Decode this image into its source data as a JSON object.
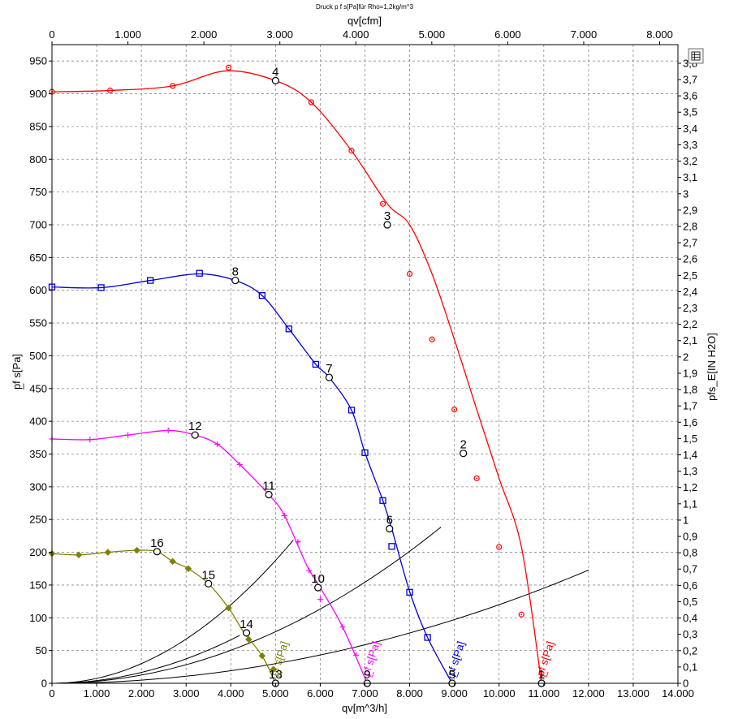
{
  "chart_data": {
    "type": "line",
    "title": "Druck p f s[Pa]für Rho=1,2kg/m^3",
    "xlabel": "qv[m^3/h]",
    "x2label": "qv[cfm]",
    "ylabel": "p̲f s[Pa]",
    "y2label": "pfs_E[IN H2O]",
    "xlim": [
      0,
      14000
    ],
    "ylim": [
      0,
      975
    ],
    "x2lim": [
      0,
      8240
    ],
    "y2lim": [
      0,
      3.914
    ],
    "x_ticks": [
      "0",
      "1.000",
      "2.000",
      "3.000",
      "4.000",
      "5.000",
      "6.000",
      "7.000",
      "8.000",
      "9.000",
      "10.000",
      "11.000",
      "12.000",
      "13.000",
      "14.000"
    ],
    "x2_ticks": [
      "0",
      "1.000",
      "2.000",
      "3.000",
      "4.000",
      "5.000",
      "6.000",
      "7.000",
      "8.000"
    ],
    "y_ticks": [
      "0",
      "50",
      "100",
      "150",
      "200",
      "250",
      "300",
      "350",
      "400",
      "450",
      "500",
      "550",
      "600",
      "650",
      "700",
      "750",
      "800",
      "850",
      "900",
      "950"
    ],
    "y2_ticks": [
      "0",
      "0,1",
      "0,2",
      "0,3",
      "0,4",
      "0,5",
      "0,6",
      "0,7",
      "0,8",
      "0,9",
      "1",
      "1,1",
      "1,2",
      "1,3",
      "1,4",
      "1,5",
      "1,6",
      "1,7",
      "1,8",
      "1,9",
      "2",
      "2,1",
      "2,2",
      "2,3",
      "2,4",
      "2,5",
      "2,6",
      "2,7",
      "2,8",
      "2,9",
      "3",
      "3,1",
      "3,2",
      "3,3",
      "3,4",
      "3,5",
      "3,6",
      "3,7",
      "3,8"
    ],
    "grid": true,
    "series": [
      {
        "name": "p̲f s[Pa]",
        "color": "#ff0000",
        "marker": "circle",
        "x": [
          0,
          1300,
          2700,
          3900,
          5000,
          5800,
          6700,
          7500,
          8000,
          8500,
          9000,
          9500,
          10000,
          10500,
          10950
        ],
        "y": [
          903,
          905,
          912,
          935,
          920,
          887,
          813,
          732,
          700,
          625,
          525,
          418,
          313,
          208,
          0
        ],
        "markers_x": [
          0,
          1300,
          2700,
          3950,
          5800,
          6700,
          7400,
          8000,
          8500,
          9000,
          9500,
          10000,
          10500
        ],
        "markers_y": [
          903,
          905,
          912,
          940,
          887,
          813,
          732,
          625,
          525,
          418,
          313,
          208,
          105
        ]
      },
      {
        "name": "p̲f s[Pa]",
        "color": "#0000dd",
        "marker": "square",
        "x": [
          0,
          1100,
          2200,
          3300,
          4100,
          4700,
          5300,
          5900,
          6200,
          6700,
          7000,
          7400,
          7600,
          8000,
          8400,
          8950
        ],
        "y": [
          605,
          604,
          615,
          625,
          615,
          592,
          541,
          487,
          467,
          417,
          352,
          279,
          236,
          140,
          70,
          0
        ],
        "markers_x": [
          0,
          1100,
          2200,
          3300,
          4700,
          5300,
          5900,
          6700,
          7000,
          7400,
          7600,
          8000,
          8400
        ],
        "markers_y": [
          605,
          604,
          615,
          626,
          592,
          541,
          487,
          417,
          352,
          279,
          209,
          139,
          70
        ]
      },
      {
        "name": "p̲f s[Pa]",
        "color": "#ff00ff",
        "marker": "plus",
        "x": [
          0,
          850,
          1700,
          2600,
          3200,
          3700,
          4200,
          4850,
          5200,
          5700,
          6000,
          6500,
          7050
        ],
        "y": [
          373,
          372,
          379,
          386,
          379,
          365,
          334,
          288,
          256,
          180,
          146,
          86,
          0
        ],
        "markers_x": [
          0,
          850,
          1700,
          2600,
          3700,
          4200,
          5200,
          5500,
          5750,
          6000,
          6500,
          6800
        ],
        "markers_y": [
          373,
          372,
          379,
          386,
          365,
          334,
          256,
          216,
          172,
          128,
          86,
          43
        ]
      },
      {
        "name": "p̲f s[Pa]",
        "color": "#808000",
        "marker": "diamond",
        "x": [
          0,
          600,
          1250,
          1900,
          2350,
          2700,
          3050,
          3500,
          3950,
          4300,
          4700,
          5000
        ],
        "y": [
          198,
          196,
          200,
          203,
          201,
          186,
          175,
          152,
          115,
          77,
          42,
          0
        ],
        "markers_x": [
          0,
          600,
          1250,
          1900,
          2700,
          3050,
          3500,
          3950,
          4400,
          4700,
          4950
        ],
        "markers_y": [
          198,
          196,
          200,
          203,
          186,
          175,
          152,
          115,
          67,
          42,
          21
        ]
      }
    ],
    "system_curves": [
      {
        "k": 7.5e-06,
        "x_max": 5400
      },
      {
        "k": 3.15e-06,
        "x_max": 8700
      },
      {
        "k": 1.2e-06,
        "x_max": 12000
      },
      {
        "k": 4.15e-06,
        "x_max": 4200,
        "through": [
          4100,
          615
        ]
      }
    ],
    "operating_points": [
      {
        "label": "1",
        "x": 10950,
        "y": 0
      },
      {
        "label": "2",
        "x": 9200,
        "y": 351
      },
      {
        "label": "3",
        "x": 7500,
        "y": 700
      },
      {
        "label": "4",
        "x": 5000,
        "y": 920
      },
      {
        "label": "5",
        "x": 8950,
        "y": 0
      },
      {
        "label": "6",
        "x": 7550,
        "y": 236
      },
      {
        "label": "7",
        "x": 6200,
        "y": 467
      },
      {
        "label": "8",
        "x": 4100,
        "y": 615
      },
      {
        "label": "9",
        "x": 7050,
        "y": 0
      },
      {
        "label": "10",
        "x": 5950,
        "y": 146
      },
      {
        "label": "11",
        "x": 4850,
        "y": 288
      },
      {
        "label": "12",
        "x": 3200,
        "y": 379
      },
      {
        "label": "13",
        "x": 5000,
        "y": 0
      },
      {
        "label": "14",
        "x": 4350,
        "y": 77
      },
      {
        "label": "15",
        "x": 3500,
        "y": 152
      },
      {
        "label": "16",
        "x": 2350,
        "y": 201
      }
    ]
  },
  "toolbar": {
    "corner_icon": "table-icon"
  }
}
